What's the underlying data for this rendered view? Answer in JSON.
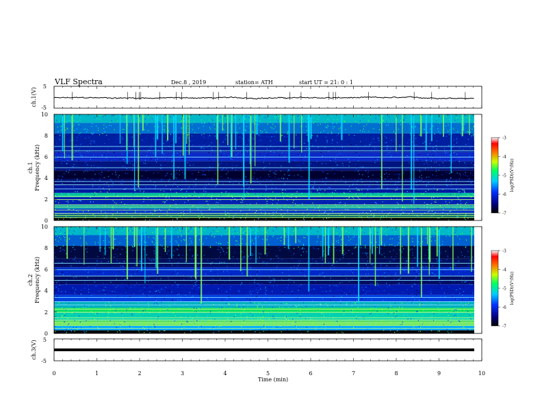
{
  "header": {
    "title": "VLF  Spectra",
    "date": "Dec.8  , 2019",
    "station": "station= ATH",
    "start": "start  UT  =    21: 0   : 1"
  },
  "x_axis": {
    "label": "Time  (min)",
    "ticks": [
      "0",
      "1",
      "2",
      "3",
      "4",
      "5",
      "6",
      "7",
      "8",
      "9",
      "10"
    ],
    "range": [
      0,
      10
    ],
    "data_end": 9.83
  },
  "colors": {
    "scale": [
      "#000000",
      "#000080",
      "#0033ff",
      "#00ccff",
      "#00ff66",
      "#ccff00",
      "#ff6600",
      "#ff0000",
      "#ffffff"
    ]
  },
  "chart_data": [
    {
      "type": "line",
      "channel": "ch.1",
      "ylabel": "ch.1(V)",
      "y_ticks": [
        "5",
        "-5"
      ],
      "ylim": [
        -5,
        5
      ],
      "x_range": [
        0,
        9.83
      ],
      "description_series": "noisy trace near 0 V with small spikes"
    },
    {
      "type": "heatmap",
      "channel": "ch.1",
      "ylabel": "Frequency  (kHz)",
      "y_ticks": [
        "0",
        "2",
        "4",
        "6",
        "8",
        "10"
      ],
      "ylim": [
        0,
        10
      ],
      "colorbar_label": "log(PSD)(V²/Hz)",
      "colorbar_ticks": [
        "-3",
        "-4",
        "-5",
        "-6",
        "-7"
      ],
      "colorbar_range": [
        -7,
        -3
      ],
      "bands_khz": [
        0.3,
        0.5,
        0.7,
        1.0,
        1.3,
        1.5,
        2.0,
        2.3,
        3.0,
        3.4,
        3.7,
        5.0,
        6.0,
        6.6,
        7.0
      ]
    },
    {
      "type": "heatmap",
      "channel": "ch.2",
      "ylabel": "Frequency  (kHz)",
      "y_ticks": [
        "0",
        "2",
        "4",
        "6",
        "8",
        "10"
      ],
      "ylim": [
        0,
        10
      ],
      "colorbar_label": "log(PSD)(V²/Hz)",
      "colorbar_ticks": [
        "-3",
        "-4",
        "-5",
        "-6",
        "-7"
      ],
      "colorbar_range": [
        -7,
        -3
      ],
      "bands_khz": [
        0.5,
        0.8,
        1.0,
        1.3,
        1.5,
        2.0,
        2.3,
        2.7,
        3.0,
        3.4,
        5.0,
        5.4,
        6.0,
        6.6
      ]
    },
    {
      "type": "line",
      "channel": "ch.3",
      "ylabel": "ch.3(V)",
      "y_ticks": [
        "5",
        "-5"
      ],
      "ylim": [
        -5,
        5
      ],
      "x_range": [
        0,
        9.83
      ]
    }
  ]
}
